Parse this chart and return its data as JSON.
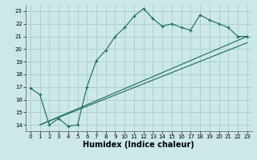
{
  "xlabel": "Humidex (Indice chaleur)",
  "ylabel": "",
  "bg_color": "#cce8e8",
  "grid_color": "#aacccc",
  "line_color": "#1a6b5a",
  "xlim": [
    -0.5,
    23.5
  ],
  "ylim": [
    13.5,
    23.5
  ],
  "xticks": [
    0,
    1,
    2,
    3,
    4,
    5,
    6,
    7,
    8,
    9,
    10,
    11,
    12,
    13,
    14,
    15,
    16,
    17,
    18,
    19,
    20,
    21,
    22,
    23
  ],
  "yticks": [
    14,
    15,
    16,
    17,
    18,
    19,
    20,
    21,
    22,
    23
  ],
  "line1_x": [
    0,
    1,
    2,
    3,
    4,
    5,
    6,
    7,
    8,
    9,
    10,
    11,
    12,
    13,
    14,
    15,
    16,
    17,
    18,
    19,
    20,
    21,
    22,
    23
  ],
  "line1_y": [
    16.9,
    16.4,
    14.0,
    14.5,
    13.9,
    14.0,
    17.0,
    19.1,
    19.9,
    21.0,
    21.7,
    22.6,
    23.2,
    22.4,
    21.8,
    22.0,
    21.7,
    21.5,
    22.7,
    22.3,
    22.0,
    21.7,
    21.0,
    21.0
  ],
  "line2_x": [
    1,
    23
  ],
  "line2_y": [
    14.0,
    21.0
  ],
  "line3_x": [
    1,
    23
  ],
  "line3_y": [
    14.0,
    20.5
  ],
  "tick_fontsize": 5.0,
  "xlabel_fontsize": 7.0
}
